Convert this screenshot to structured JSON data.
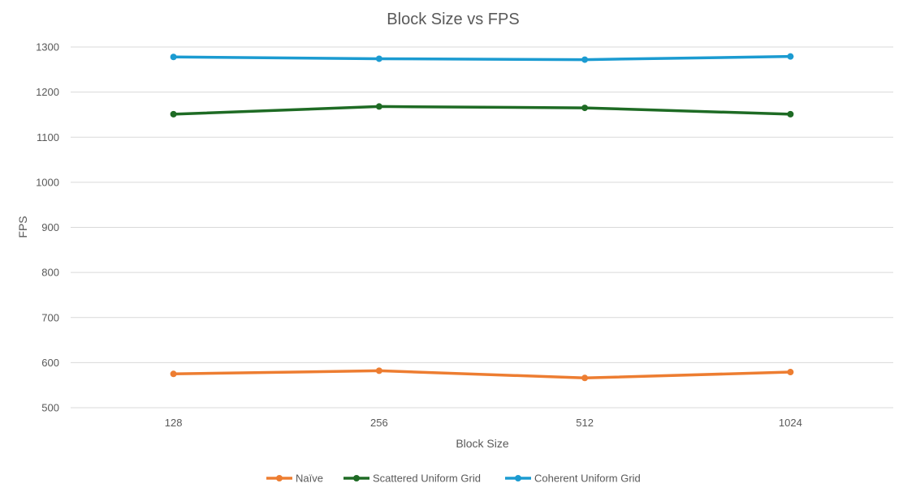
{
  "chart_data": {
    "type": "line",
    "title": "Block Size vs FPS",
    "xlabel": "Block Size",
    "ylabel": "FPS",
    "categories": [
      "128",
      "256",
      "512",
      "1024"
    ],
    "ylim": [
      500,
      1300
    ],
    "yticks": [
      500,
      600,
      700,
      800,
      900,
      1000,
      1100,
      1200,
      1300
    ],
    "grid": true,
    "legend_position": "bottom",
    "series": [
      {
        "name": "Naïve",
        "color": "#ed7d31",
        "values": [
          575,
          582,
          566,
          579
        ]
      },
      {
        "name": "Scattered Uniform Grid",
        "color": "#1e6b24",
        "values": [
          1151,
          1168,
          1165,
          1151
        ]
      },
      {
        "name": "Coherent Uniform Grid",
        "color": "#1b9bd1",
        "values": [
          1278,
          1274,
          1272,
          1279
        ]
      }
    ]
  }
}
